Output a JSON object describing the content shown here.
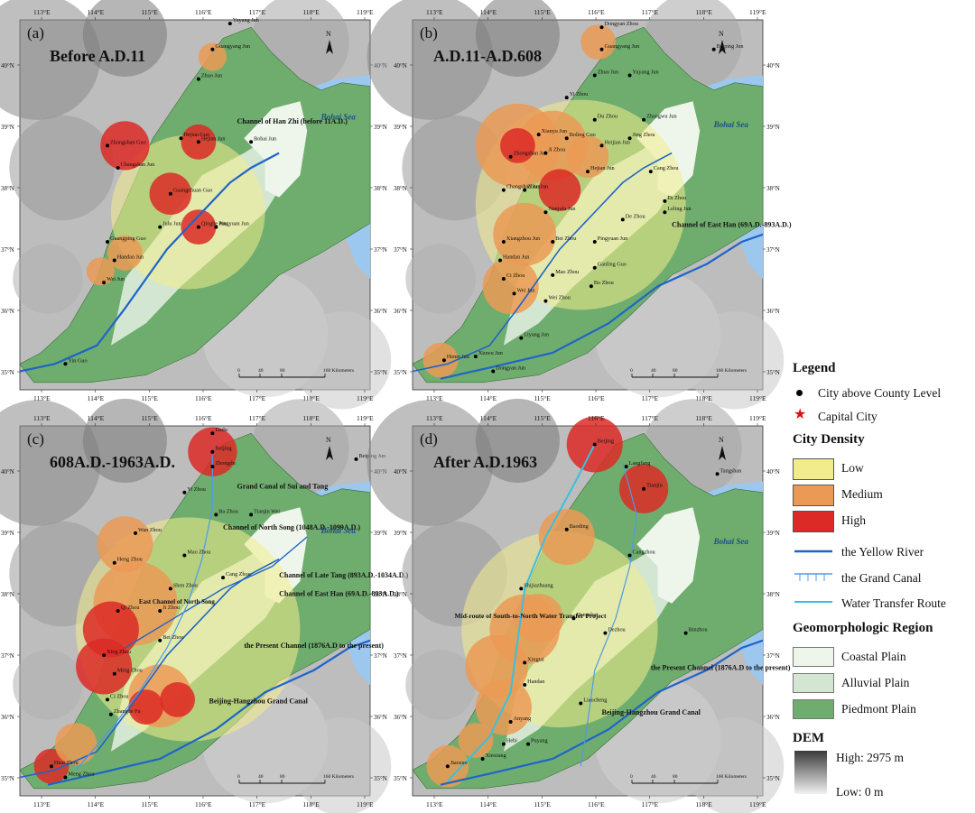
{
  "panels": [
    {
      "label": "(a)",
      "title": "Before A.D.11",
      "cities": [
        "Yuyang Jun",
        "Guangyang Jun",
        "Zhuo Jun",
        "Zhongshan Guo",
        "Hejian Guo",
        "Hejian Jun",
        "Bohai Jun",
        "Changshan Jun",
        "Guangchuan Guo",
        "Julu Jun",
        "Qinghe Jun",
        "Pingyuan Jun",
        "Guangping Guo",
        "Handan Jun",
        "Wei Jun",
        "Yin Guo"
      ],
      "annotations": [
        "Channel of Han Zhi (before 11A.D.)",
        "Bohai Sea"
      ]
    },
    {
      "label": "(b)",
      "title": "A.D.11-A.D.608",
      "cities": [
        "Dongyan Zhou",
        "Guangyang Jun",
        "Beiping Jun",
        "Zhuo Jun",
        "Yuyang Jun",
        "Yi Zhou",
        "Du Zhou",
        "Zhangwu Jun",
        "Xianyu Jun",
        "Boling Guo",
        "Heijian Jun",
        "Jing Zhou",
        "Zhongshan Jun",
        "Ji Zhou",
        "Hejian Jun",
        "Cang Zhou",
        "Changshan Jun",
        "Zhao Jun",
        "Nanjulu Jun",
        "De Zhou",
        "Di Zhou",
        "Leling Jun",
        "Xiangzhou Jun",
        "Bei Zhou",
        "Pingyuan Jun",
        "Handan Jun",
        "Ganling Guo",
        "Ci Zhou",
        "Mao Zhou",
        "Bo Zhou",
        "Wei Jun",
        "Wei Zhou",
        "Liyang Jun",
        "Henei Jun",
        "Dongyan Jun",
        "Xiuwu Jun"
      ],
      "annotations": [
        "Channel of East Han (69A.D.-893A.D.)",
        "Bohai Sea"
      ]
    },
    {
      "label": "(c)",
      "title": "608A.D.-1963A.D.",
      "cities": [
        "Dadu",
        "Beijing",
        "Zhongdu",
        "Beiping Jun",
        "Yi Zhou",
        "Ba Zhou",
        "Tianjin Wei",
        "Wan Zhou",
        "Heng Zhou",
        "Mao Zhou",
        "Cang Zhou",
        "Shen Zhou",
        "Qi Zhou",
        "Ji Zhou",
        "Bei Zhou",
        "Xing Zhou",
        "Ming Zhou",
        "Ci Zhou",
        "Zhangde Fu",
        "Huai Zhou",
        "Meng Zhou"
      ],
      "annotations": [
        "Grand Canal of Sui and Tang",
        "Channel of North Song (1048A.D.-1099A.D.)",
        "Channel of Late Tang (893A.D.-1034A.D.)",
        "Channel of East Han (69A.D.-893A.D.)",
        "the Present Channel (1876A.D to the present)",
        "Beijing-Hangzhou Grand Canal",
        "East Channel of North Song",
        "Bohai Sea"
      ]
    },
    {
      "label": "(d)",
      "title": "After A.D.1963",
      "cities": [
        "Beijing",
        "Langfang",
        "Tangshan",
        "Tianjin",
        "Baoding",
        "Cangzhou",
        "Shijiazhuang",
        "Hengshui",
        "Dezhou",
        "Binzhou",
        "Xingtai",
        "Handan",
        "Liaocheng",
        "Anyang",
        "Hebi",
        "Puyang",
        "Xinxiang",
        "Jiaozuo"
      ],
      "annotations": [
        "Mid-route of South-to-North Water Transfer Project",
        "the Present Channel (1876A.D to the present)",
        "Beijing-Hangzhou Grand Canal",
        "Bohai Sea"
      ]
    }
  ],
  "axes": {
    "longitudes": [
      "113°E",
      "114°E",
      "115°E",
      "116°E",
      "117°E",
      "118°E",
      "119°E"
    ],
    "latitudes": [
      "40°N",
      "39°N",
      "38°N",
      "37°N",
      "36°N",
      "35°N"
    ]
  },
  "scalebar": {
    "ticks": [
      "0",
      "40",
      "80",
      "160 Kilometers"
    ]
  },
  "north_label": "N",
  "legend": {
    "title": "Legend",
    "city_label": "City above County Level",
    "capital_label": "Capital City",
    "density_title": "City Density",
    "density_low": "Low",
    "density_medium": "Medium",
    "density_high": "High",
    "yellow_river": "the Yellow River",
    "grand_canal": "the Grand Canal",
    "water_transfer": "Water Transfer Route",
    "geo_title": "Geomorphologic Region",
    "coastal": "Coastal Plain",
    "alluvial": "Alluvial Plain",
    "piedmont": "Piedmont Plain",
    "dem_title": "DEM",
    "dem_high": "High: 2975 m",
    "dem_low": "Low: 0 m"
  },
  "colors": {
    "low": "#f2ec8c",
    "medium": "#eb9a55",
    "high": "#dc2a26",
    "river": "#1f64c8",
    "canal": "#4f9ae8",
    "transfer": "#37c1e0",
    "coastal": "#eef6ec",
    "alluvial": "#d3e6d2",
    "piedmont": "#6fad6e",
    "sea": "#9cc8ef",
    "dem_high": "#3a3a3a",
    "dem_low": "#f2f2f2"
  }
}
